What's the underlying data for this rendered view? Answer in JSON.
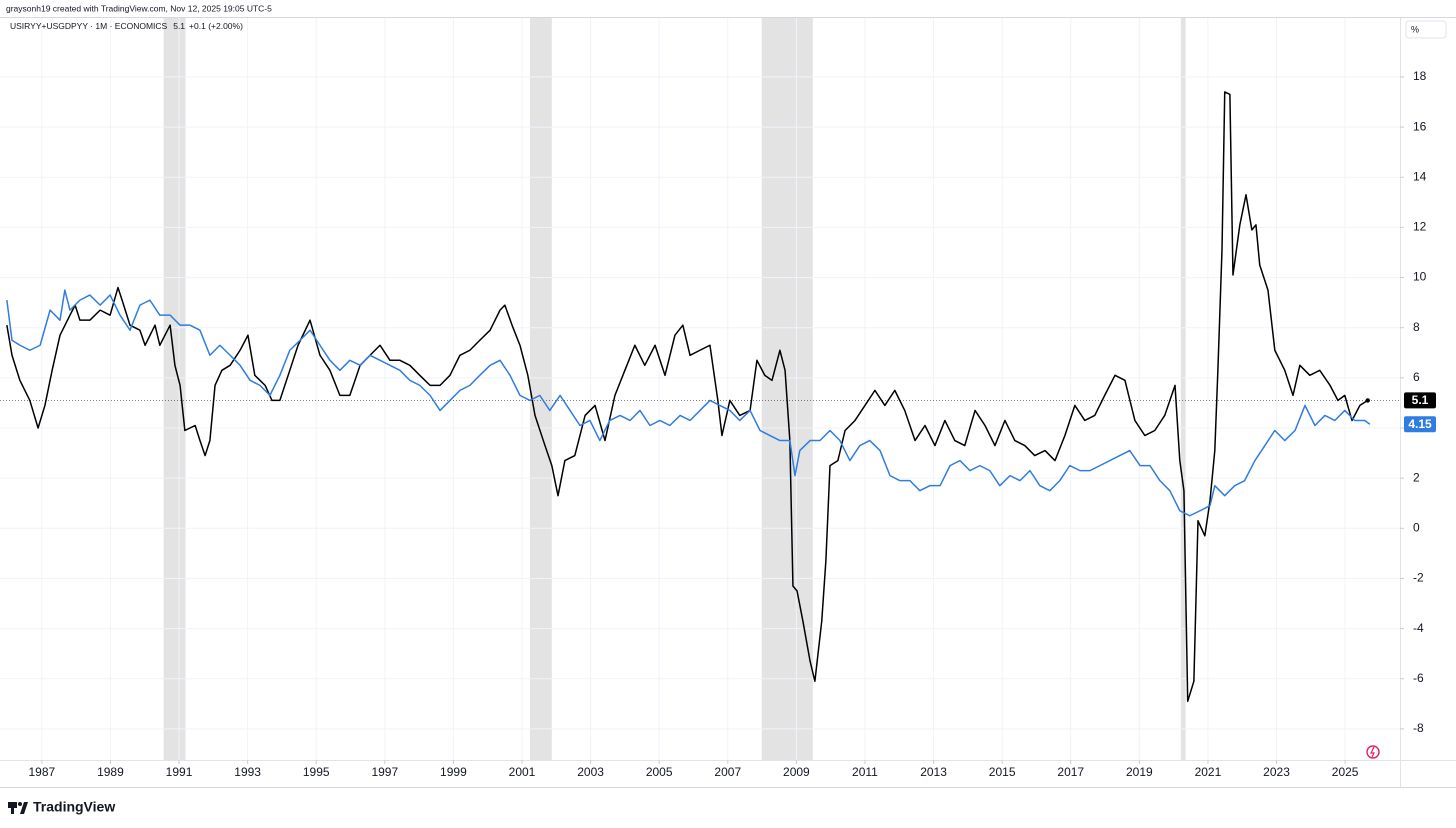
{
  "header": "graysonh19 created with TradingView.com, Nov 12, 2025 19:05 UTC-5",
  "legend": {
    "symbol": "USIRYY+USGDPYY · 1M · ECONOMICS",
    "value": "5.1",
    "change": "+0.1 (+2.00%)"
  },
  "unit_label": "%",
  "brand": "TradingView",
  "chart_data": {
    "type": "line",
    "grid": true,
    "xlim": [
      1985.78,
      2026.6
    ],
    "xticks": [
      1987,
      1989,
      1991,
      1993,
      1995,
      1997,
      1999,
      2001,
      2003,
      2005,
      2007,
      2009,
      2011,
      2013,
      2015,
      2017,
      2019,
      2021,
      2023,
      2025
    ],
    "ylim": [
      -9.24,
      20.35
    ],
    "yticks": [
      -8,
      -6,
      -4,
      -2,
      0,
      2,
      4,
      6,
      8,
      10,
      12,
      14,
      16,
      18
    ],
    "recessions": [
      [
        1990.55,
        1991.19
      ],
      [
        2001.23,
        2001.87
      ],
      [
        2007.99,
        2009.48
      ],
      [
        2020.21,
        2020.35
      ]
    ],
    "series": [
      {
        "color": "#000000",
        "x": [
          1985.98,
          1986.13,
          1986.36,
          1986.65,
          1986.89,
          1987.09,
          1987.3,
          1987.53,
          1987.82,
          1987.97,
          1988.11,
          1988.4,
          1988.7,
          1988.99,
          1989.22,
          1989.34,
          1989.57,
          1989.86,
          1990.01,
          1990.3,
          1990.44,
          1990.74,
          1990.88,
          1991.03,
          1991.17,
          1991.47,
          1991.61,
          1991.76,
          1991.9,
          1992.05,
          1992.25,
          1992.49,
          1992.78,
          1993.01,
          1993.21,
          1993.51,
          1993.71,
          1993.94,
          1994.23,
          1994.47,
          1994.82,
          1995.11,
          1995.4,
          1995.69,
          1995.98,
          1996.28,
          1996.57,
          1996.86,
          1997.15,
          1997.44,
          1997.73,
          1998.02,
          1998.32,
          1998.61,
          1998.9,
          1999.19,
          1999.48,
          1999.77,
          2000.07,
          2000.36,
          2000.5,
          2000.71,
          2000.94,
          2001.17,
          2001.38,
          2001.67,
          2001.87,
          2002.05,
          2002.25,
          2002.54,
          2002.84,
          2003.13,
          2003.42,
          2003.71,
          2004.0,
          2004.29,
          2004.58,
          2004.88,
          2005.17,
          2005.46,
          2005.69,
          2005.9,
          2006.19,
          2006.48,
          2006.71,
          2006.83,
          2007.06,
          2007.35,
          2007.65,
          2007.85,
          2008.08,
          2008.29,
          2008.52,
          2008.67,
          2008.81,
          2008.9,
          2009.02,
          2009.19,
          2009.4,
          2009.54,
          2009.74,
          2009.86,
          2009.98,
          2010.21,
          2010.42,
          2010.71,
          2011.0,
          2011.29,
          2011.58,
          2011.87,
          2012.16,
          2012.46,
          2012.75,
          2013.04,
          2013.33,
          2013.62,
          2013.91,
          2014.21,
          2014.5,
          2014.79,
          2015.08,
          2015.37,
          2015.66,
          2015.95,
          2016.25,
          2016.54,
          2016.83,
          2017.12,
          2017.41,
          2017.7,
          2017.99,
          2018.29,
          2018.58,
          2018.87,
          2019.16,
          2019.45,
          2019.74,
          2020.04,
          2020.18,
          2020.3,
          2020.41,
          2020.59,
          2020.71,
          2020.91,
          2021.06,
          2021.2,
          2021.29,
          2021.41,
          2021.49,
          2021.64,
          2021.73,
          2021.93,
          2022.11,
          2022.28,
          2022.4,
          2022.51,
          2022.75,
          2022.95,
          2023.24,
          2023.48,
          2023.68,
          2023.97,
          2024.26,
          2024.56,
          2024.79,
          2024.99,
          2025.2,
          2025.43,
          2025.66
        ],
        "values": [
          8.1,
          6.9,
          5.9,
          5.1,
          4.0,
          4.9,
          6.3,
          7.7,
          8.5,
          8.9,
          8.3,
          8.3,
          8.7,
          8.5,
          9.6,
          9.1,
          8.1,
          7.9,
          7.3,
          8.1,
          7.3,
          8.1,
          6.5,
          5.7,
          3.9,
          4.1,
          3.5,
          2.9,
          3.5,
          5.7,
          6.3,
          6.5,
          7.1,
          7.7,
          6.1,
          5.7,
          5.1,
          5.1,
          6.3,
          7.3,
          8.3,
          6.9,
          6.3,
          5.3,
          5.3,
          6.5,
          6.9,
          7.3,
          6.7,
          6.7,
          6.5,
          6.1,
          5.7,
          5.7,
          6.1,
          6.9,
          7.1,
          7.5,
          7.9,
          8.7,
          8.9,
          8.1,
          7.3,
          6.1,
          4.5,
          3.3,
          2.5,
          1.3,
          2.7,
          2.9,
          4.5,
          4.9,
          3.5,
          5.3,
          6.3,
          7.3,
          6.5,
          7.3,
          6.1,
          7.7,
          8.1,
          6.9,
          7.1,
          7.3,
          5.1,
          3.7,
          5.1,
          4.5,
          4.7,
          6.7,
          6.1,
          5.9,
          7.1,
          6.3,
          3.5,
          -2.3,
          -2.5,
          -3.7,
          -5.3,
          -6.1,
          -3.7,
          -1.3,
          2.5,
          2.7,
          3.9,
          4.3,
          4.9,
          5.5,
          4.9,
          5.5,
          4.7,
          3.5,
          4.1,
          3.3,
          4.3,
          3.5,
          3.3,
          4.7,
          4.1,
          3.3,
          4.3,
          3.5,
          3.3,
          2.9,
          3.1,
          2.7,
          3.7,
          4.9,
          4.3,
          4.5,
          5.3,
          6.1,
          5.9,
          4.3,
          3.7,
          3.9,
          4.5,
          5.7,
          2.7,
          1.5,
          -6.9,
          -6.1,
          0.3,
          -0.3,
          1.1,
          3.1,
          6.3,
          11.1,
          17.4,
          17.3,
          10.1,
          12.1,
          13.3,
          11.9,
          12.1,
          10.5,
          9.5,
          7.1,
          6.3,
          5.3,
          6.5,
          6.1,
          6.3,
          5.7,
          5.1,
          5.3,
          4.3,
          4.9,
          5.1
        ]
      },
      {
        "color": "#2f7de1",
        "x": [
          1985.98,
          1986.13,
          1986.36,
          1986.65,
          1986.95,
          1987.24,
          1987.53,
          1987.67,
          1987.82,
          1988.11,
          1988.4,
          1988.7,
          1988.99,
          1989.28,
          1989.57,
          1989.86,
          1990.15,
          1990.44,
          1990.74,
          1991.03,
          1991.32,
          1991.61,
          1991.9,
          1992.19,
          1992.49,
          1992.78,
          1993.07,
          1993.36,
          1993.65,
          1993.94,
          1994.23,
          1994.53,
          1994.82,
          1995.11,
          1995.4,
          1995.69,
          1995.98,
          1996.28,
          1996.57,
          1996.86,
          1997.15,
          1997.44,
          1997.73,
          1998.02,
          1998.32,
          1998.61,
          1998.9,
          1999.19,
          1999.48,
          1999.77,
          2000.07,
          2000.36,
          2000.65,
          2000.94,
          2001.23,
          2001.52,
          2001.81,
          2002.11,
          2002.4,
          2002.69,
          2002.98,
          2003.27,
          2003.56,
          2003.86,
          2004.15,
          2004.44,
          2004.73,
          2005.02,
          2005.31,
          2005.61,
          2005.9,
          2006.19,
          2006.48,
          2006.77,
          2007.06,
          2007.35,
          2007.65,
          2007.94,
          2008.23,
          2008.52,
          2008.81,
          2008.96,
          2009.1,
          2009.4,
          2009.69,
          2009.98,
          2010.27,
          2010.56,
          2010.85,
          2011.14,
          2011.44,
          2011.73,
          2012.02,
          2012.31,
          2012.6,
          2012.89,
          2013.19,
          2013.48,
          2013.77,
          2014.06,
          2014.35,
          2014.64,
          2014.93,
          2015.23,
          2015.52,
          2015.81,
          2016.1,
          2016.39,
          2016.68,
          2016.97,
          2017.27,
          2017.56,
          2017.85,
          2018.14,
          2018.43,
          2018.72,
          2019.02,
          2019.31,
          2019.6,
          2019.89,
          2020.18,
          2020.47,
          2020.77,
          2021.06,
          2021.2,
          2021.49,
          2021.78,
          2022.07,
          2022.37,
          2022.66,
          2022.95,
          2023.24,
          2023.54,
          2023.83,
          2024.12,
          2024.41,
          2024.7,
          2024.99,
          2025.28,
          2025.57,
          2025.72
        ],
        "values": [
          9.1,
          7.5,
          7.3,
          7.1,
          7.3,
          8.7,
          8.3,
          9.5,
          8.7,
          9.1,
          9.3,
          8.9,
          9.3,
          8.5,
          7.9,
          8.9,
          9.1,
          8.5,
          8.5,
          8.1,
          8.1,
          7.9,
          6.9,
          7.3,
          6.9,
          6.5,
          5.9,
          5.7,
          5.3,
          6.1,
          7.1,
          7.5,
          7.9,
          7.3,
          6.7,
          6.3,
          6.7,
          6.5,
          6.9,
          6.7,
          6.5,
          6.3,
          5.9,
          5.7,
          5.3,
          4.7,
          5.1,
          5.5,
          5.7,
          6.1,
          6.5,
          6.7,
          6.1,
          5.3,
          5.1,
          5.3,
          4.7,
          5.3,
          4.7,
          4.1,
          4.3,
          3.5,
          4.3,
          4.5,
          4.3,
          4.7,
          4.1,
          4.3,
          4.1,
          4.5,
          4.3,
          4.7,
          5.1,
          4.9,
          4.7,
          4.3,
          4.7,
          3.9,
          3.7,
          3.5,
          3.5,
          2.1,
          3.1,
          3.5,
          3.5,
          3.9,
          3.5,
          2.7,
          3.3,
          3.5,
          3.1,
          2.1,
          1.9,
          1.9,
          1.5,
          1.7,
          1.7,
          2.5,
          2.7,
          2.3,
          2.5,
          2.3,
          1.7,
          2.1,
          1.9,
          2.3,
          1.7,
          1.5,
          1.9,
          2.5,
          2.3,
          2.3,
          2.5,
          2.7,
          2.9,
          3.1,
          2.5,
          2.5,
          1.9,
          1.5,
          0.7,
          0.5,
          0.7,
          0.9,
          1.7,
          1.3,
          1.7,
          1.9,
          2.7,
          3.3,
          3.9,
          3.5,
          3.9,
          4.9,
          4.1,
          4.5,
          4.3,
          4.7,
          4.3,
          4.3,
          4.15
        ]
      }
    ]
  }
}
